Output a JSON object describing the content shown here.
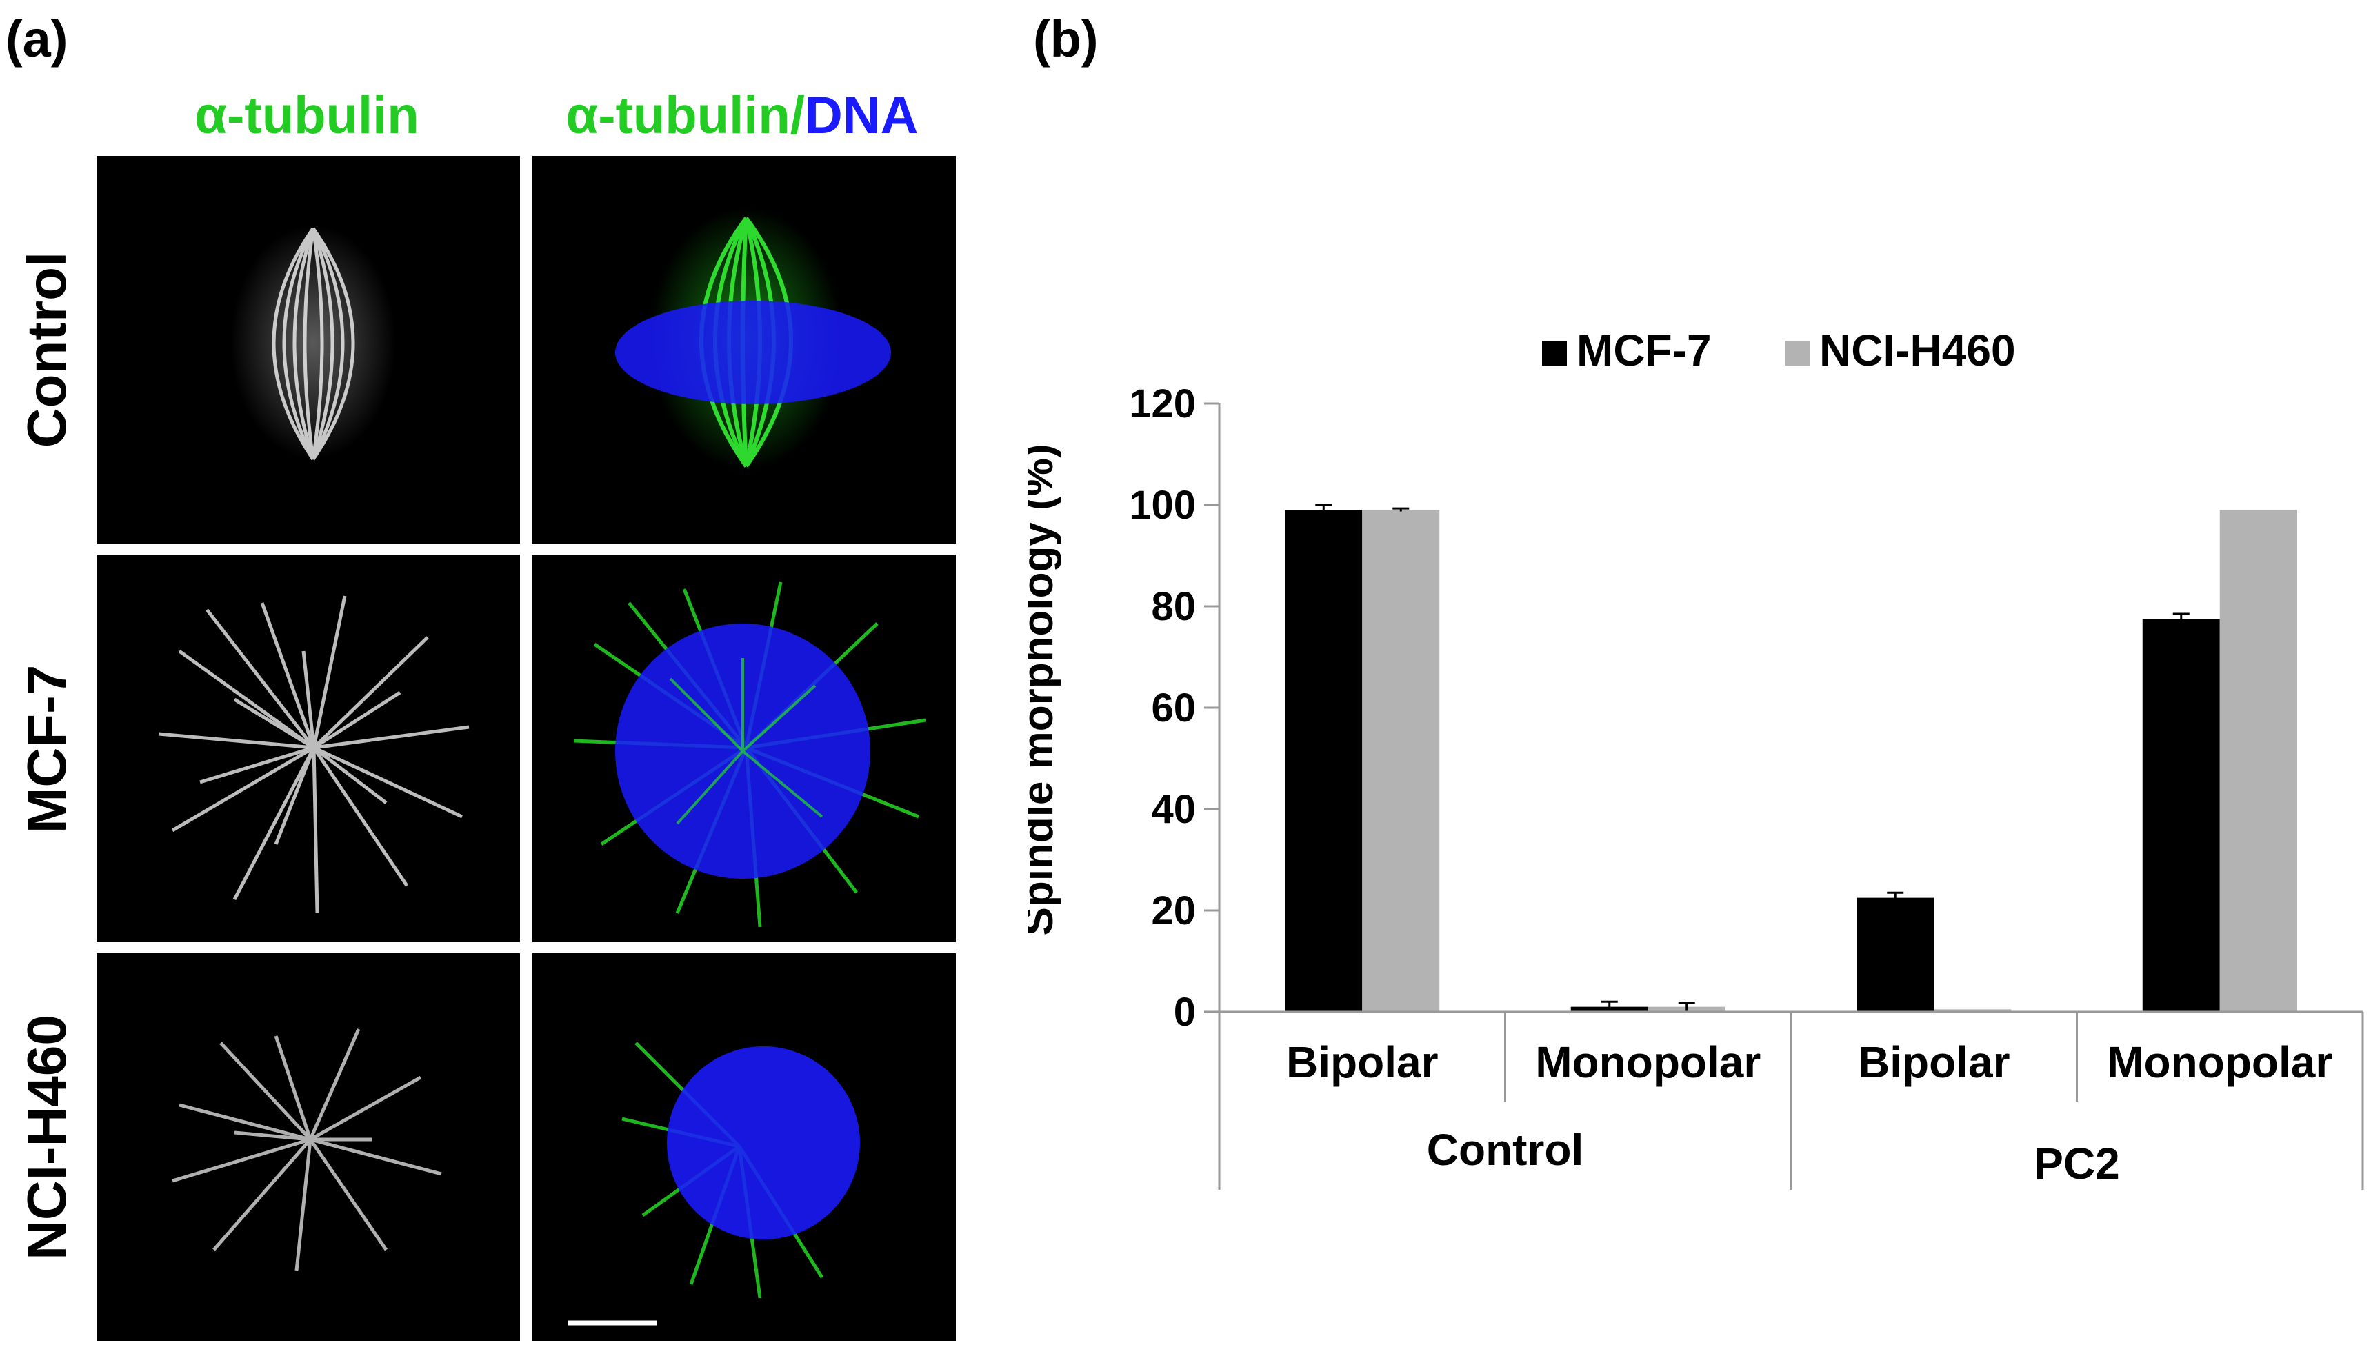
{
  "panel_a": {
    "label": "(a)",
    "columns": {
      "left_label": "α-tubulin",
      "right_prefix": "α-tubulin",
      "right_slash": "/",
      "right_suffix": "DNA"
    },
    "rows": [
      "Control",
      "MCF-7",
      "NCI-H460"
    ],
    "colors": {
      "tubulin": "#22cc22",
      "dna": "#1a1aff"
    }
  },
  "panel_b": {
    "label": "(b)"
  },
  "chart_data": {
    "type": "bar",
    "ylabel": "Spindle morphology (%)",
    "xlabel": "",
    "ylim": [
      0,
      120
    ],
    "yticks": [
      0,
      20,
      40,
      60,
      80,
      100,
      120
    ],
    "categories": [
      "Bipolar",
      "Monopolar",
      "Bipolar",
      "Monopolar"
    ],
    "groups": [
      {
        "label": "Control",
        "categories": [
          "Bipolar",
          "Monopolar"
        ]
      },
      {
        "label": "PC2",
        "categories": [
          "Bipolar",
          "Monopolar"
        ]
      }
    ],
    "series": [
      {
        "name": "MCF-7",
        "color": "#000000",
        "values": [
          99,
          1,
          22.5,
          77.5
        ],
        "errors": [
          1,
          1,
          1,
          1
        ]
      },
      {
        "name": "NCI-H460",
        "color": "#b3b3b3",
        "values": [
          99,
          1,
          0.5,
          99
        ],
        "errors": [
          0.3,
          0.8,
          0,
          0
        ]
      }
    ],
    "legend": "top-center",
    "grid": false
  }
}
